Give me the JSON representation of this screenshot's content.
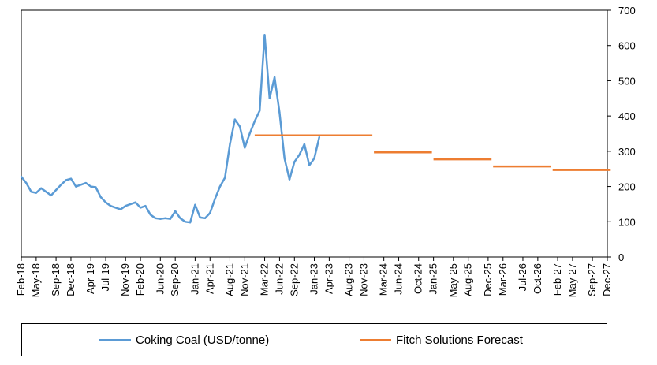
{
  "chart_data": {
    "type": "line",
    "title": "",
    "xlabel": "",
    "ylabel": "",
    "y_axis_side": "right",
    "ylim": [
      0,
      700
    ],
    "y_ticks": [
      0,
      100,
      200,
      300,
      400,
      500,
      600,
      700
    ],
    "x_range": [
      "2018-02",
      "2027-12"
    ],
    "x_tick_labels": [
      "Feb-18",
      "May-18",
      "Sep-18",
      "Dec-18",
      "Apr-19",
      "Jul-19",
      "Nov-19",
      "Feb-20",
      "Jun-20",
      "Sep-20",
      "Jan-21",
      "Apr-21",
      "Aug-21",
      "Nov-21",
      "Mar-22",
      "Jun-22",
      "Sep-22",
      "Jan-23",
      "Apr-23",
      "Aug-23",
      "Nov-23",
      "Mar-24",
      "Jun-24",
      "Oct-24",
      "Jan-25",
      "May-25",
      "Aug-25",
      "Dec-25",
      "Mar-26",
      "Jul-26",
      "Oct-26",
      "Feb-27",
      "May-27",
      "Sep-27",
      "Dec-27"
    ],
    "grid": false,
    "legend_position": "bottom",
    "series": [
      {
        "name": "Coking Coal (USD/tonne)",
        "color": "#5b9bd5",
        "kind": "line",
        "x": [
          "2018-02",
          "2018-03",
          "2018-04",
          "2018-05",
          "2018-06",
          "2018-07",
          "2018-08",
          "2018-09",
          "2018-10",
          "2018-11",
          "2018-12",
          "2019-01",
          "2019-02",
          "2019-03",
          "2019-04",
          "2019-05",
          "2019-06",
          "2019-07",
          "2019-08",
          "2019-09",
          "2019-10",
          "2019-11",
          "2019-12",
          "2020-01",
          "2020-02",
          "2020-03",
          "2020-04",
          "2020-05",
          "2020-06",
          "2020-07",
          "2020-08",
          "2020-09",
          "2020-10",
          "2020-11",
          "2020-12",
          "2021-01",
          "2021-02",
          "2021-03",
          "2021-04",
          "2021-05",
          "2021-06",
          "2021-07",
          "2021-08",
          "2021-09",
          "2021-10",
          "2021-11",
          "2021-12",
          "2022-01",
          "2022-02",
          "2022-03",
          "2022-04",
          "2022-05",
          "2022-06",
          "2022-07",
          "2022-08",
          "2022-09",
          "2022-10",
          "2022-11",
          "2022-12",
          "2023-01",
          "2023-02"
        ],
        "y": [
          228,
          210,
          185,
          182,
          195,
          185,
          175,
          190,
          205,
          218,
          222,
          200,
          205,
          210,
          200,
          198,
          170,
          155,
          145,
          140,
          135,
          145,
          150,
          155,
          140,
          145,
          120,
          110,
          108,
          110,
          108,
          130,
          110,
          100,
          98,
          148,
          112,
          110,
          125,
          165,
          200,
          225,
          320,
          390,
          370,
          310,
          350,
          385,
          415,
          630,
          450,
          510,
          410,
          280,
          220,
          270,
          290,
          320,
          260,
          280,
          340
        ]
      },
      {
        "name": "Fitch Solutions Forecast",
        "color": "#ed7d31",
        "kind": "step",
        "segments": [
          {
            "start": "2022-01",
            "end": "2023-12",
            "value": 345
          },
          {
            "start": "2024-01",
            "end": "2024-12",
            "value": 297
          },
          {
            "start": "2025-01",
            "end": "2025-12",
            "value": 277
          },
          {
            "start": "2026-01",
            "end": "2026-12",
            "value": 257
          },
          {
            "start": "2027-01",
            "end": "2027-12",
            "value": 247
          }
        ]
      }
    ]
  }
}
